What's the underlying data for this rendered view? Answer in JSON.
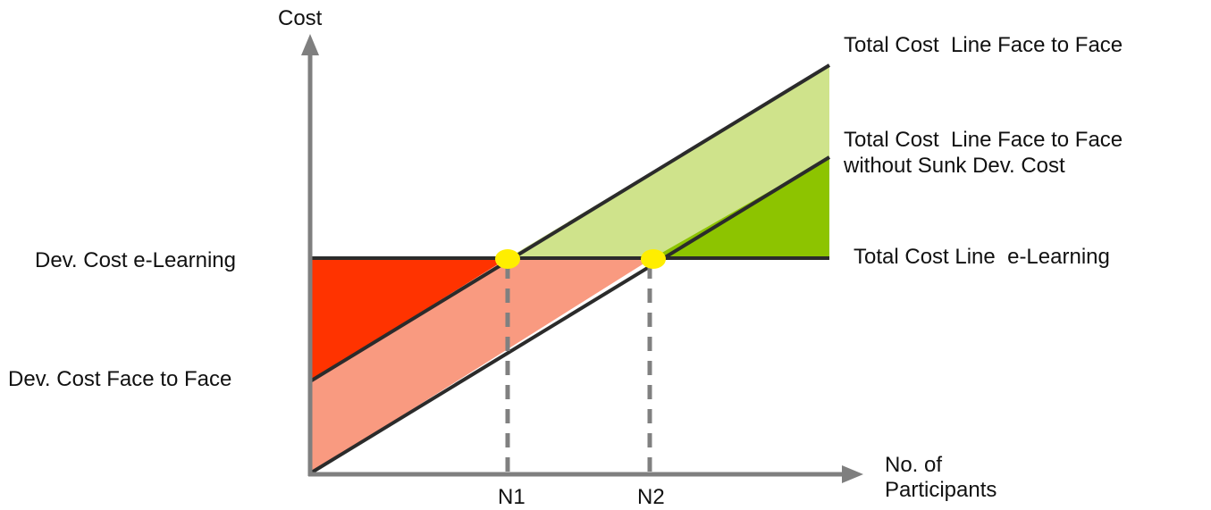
{
  "axes": {
    "y_label": "Cost",
    "x_label_line1": "No. of",
    "x_label_line2": "Participants",
    "x_ticks": [
      "N1",
      "N2"
    ]
  },
  "left_labels": {
    "dev_cost_elearning": "Dev. Cost e-Learning",
    "dev_cost_face_to_face": "Dev. Cost Face to Face"
  },
  "line_labels": {
    "total_cost_face_to_face": "Total Cost  Line Face to Face",
    "without_sunk_line1": "Total Cost  Line Face to Face",
    "without_sunk_line2": "without Sunk Dev. Cost",
    "total_cost_elearning": "Total Cost Line  e-Learning"
  },
  "colors": {
    "axis": "#7f7f7f",
    "line": "#2b2b2b",
    "red_region": "#ff3300",
    "salmon_region": "#f99a80",
    "light_green_region": "#cfe38b",
    "green_region": "#8dc400",
    "intersection_marker": "#ffee00",
    "dashed": "#808080"
  }
}
